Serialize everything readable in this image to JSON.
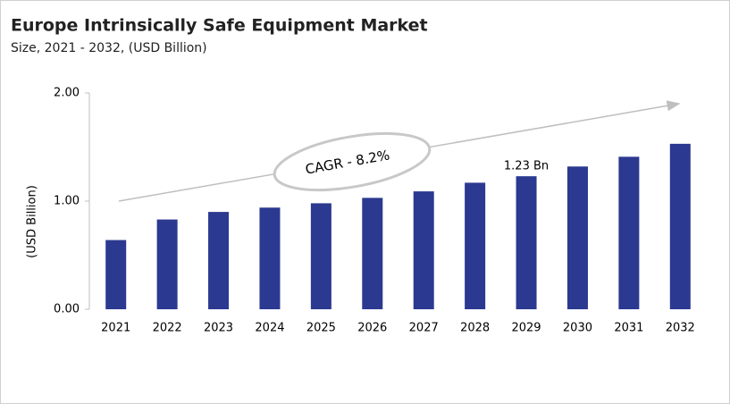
{
  "chart_data": {
    "type": "bar",
    "title": "Europe Intrinsically Safe Equipment Market",
    "subtitle": "Size, 2021 - 2032, (USD Billion)",
    "y_label": "(USD Billion)",
    "annotation": "CAGR - 8.2%",
    "categories": [
      "2021",
      "2022",
      "2023",
      "2024",
      "2025",
      "2026",
      "2027",
      "2028",
      "2029",
      "2030",
      "2031",
      "2032"
    ],
    "values": [
      0.64,
      0.83,
      0.9,
      0.94,
      0.98,
      1.03,
      1.09,
      1.17,
      1.23,
      1.32,
      1.41,
      1.53
    ],
    "value_labels": [
      null,
      null,
      null,
      null,
      null,
      null,
      null,
      null,
      "1.23 Bn",
      null,
      null,
      null
    ],
    "color": "#2b3990",
    "ylim": [
      0,
      2
    ],
    "yticks": [
      {
        "value": 0,
        "label": "0.00"
      },
      {
        "value": 1,
        "label": "1.00"
      },
      {
        "value": 2,
        "label": "2.00"
      }
    ],
    "grid": false
  }
}
